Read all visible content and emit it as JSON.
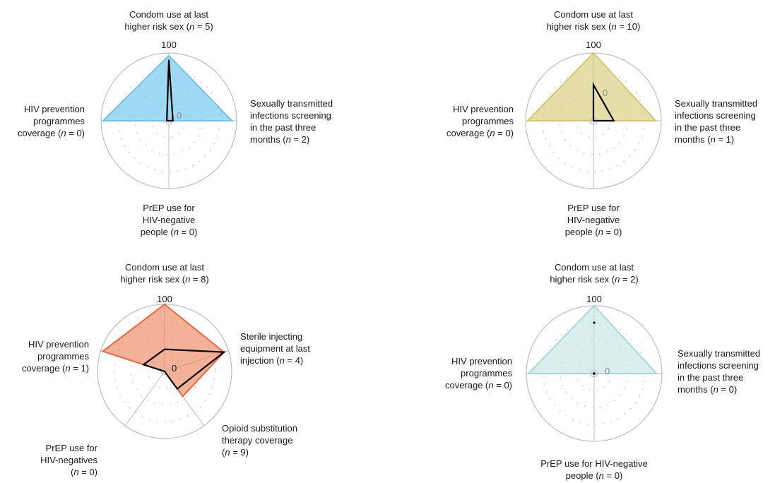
{
  "chart_data": [
    {
      "type": "radar",
      "id": "tl",
      "max_label": "100",
      "zero_label": "0",
      "range": [
        0,
        100
      ],
      "colors": {
        "fill": "#6cc5ec",
        "stroke": "#6cc5ec",
        "line": "#000000"
      },
      "axes": [
        {
          "lines": [
            "Condom use at last",
            "higher risk sex (n = 5)"
          ]
        },
        {
          "lines": [
            "Sexually transmitted",
            "infections screening",
            "in the past three",
            "months (n = 2)"
          ]
        },
        {
          "lines": [
            "PrEP use for",
            "HIV-negative",
            "people (n = 0)"
          ]
        },
        {
          "lines": [
            "HIV prevention",
            "programmes",
            "coverage (n = 0)"
          ]
        }
      ],
      "series": [
        {
          "values": [
            96,
            93,
            0,
            97
          ]
        },
        {
          "values": [
            90,
            6,
            0,
            3
          ]
        }
      ]
    },
    {
      "type": "radar",
      "id": "tr",
      "max_label": "100",
      "zero_label": "0",
      "range": [
        0,
        100
      ],
      "colors": {
        "fill": "#d9cd7a",
        "stroke": "#d4c76c",
        "line": "#000000"
      },
      "axes": [
        {
          "lines": [
            "Condom use at last",
            "higher risk sex (n = 10)"
          ]
        },
        {
          "lines": [
            "Sexually transmitted",
            "infections screening",
            "in the past three",
            "months (n = 1)"
          ]
        },
        {
          "lines": [
            "PrEP use for",
            "HIV-negative",
            "people (n = 0)"
          ]
        },
        {
          "lines": [
            "HIV prevention",
            "programmes",
            "coverage (n = 0)"
          ]
        }
      ],
      "series": [
        {
          "values": [
            100,
            92,
            0,
            97
          ]
        },
        {
          "values": [
            53,
            30,
            0,
            0
          ]
        }
      ]
    },
    {
      "type": "radar",
      "id": "bl",
      "max_label": "100",
      "zero_label": "0",
      "range": [
        0,
        100
      ],
      "colors": {
        "fill": "#ec8762",
        "stroke": "#e9683c",
        "line": "#000000"
      },
      "axes": [
        {
          "lines": [
            "Condom use at last",
            "higher risk sex (n = 8)"
          ]
        },
        {
          "lines": [
            "Sterile injecting",
            "equipment at last",
            "injection (n = 4)"
          ]
        },
        {
          "lines": [
            "Opioid substitution",
            "therapy coverage",
            "(n = 9)"
          ]
        },
        {
          "lines": [
            "PrEP use for",
            "HIV-negatives",
            "(n = 0)"
          ]
        },
        {
          "lines": [
            "HIV prevention",
            "programmes",
            "coverage (n = 1)"
          ]
        }
      ],
      "series": [
        {
          "values": [
            100,
            93,
            46,
            0,
            97
          ]
        },
        {
          "values": [
            33,
            93,
            32,
            0,
            33
          ]
        }
      ]
    },
    {
      "type": "radar",
      "id": "br",
      "max_label": "100",
      "zero_label": "0",
      "range": [
        0,
        100
      ],
      "colors": {
        "fill": "#c2e3e2",
        "stroke": "#a9d8d6",
        "line": "#000000"
      },
      "axes": [
        {
          "lines": [
            "Condom use at last",
            "higher risk sex (n = 2)"
          ]
        },
        {
          "lines": [
            "Sexually transmitted",
            "infections screening",
            "in the past three",
            "months (n = 0)"
          ]
        },
        {
          "lines": [
            "PrEP use for HIV-negative",
            "people (n = 0)"
          ]
        },
        {
          "lines": [
            "HIV prevention",
            "programmes",
            "coverage (n = 0)"
          ]
        }
      ],
      "series": [
        {
          "values": [
            100,
            92,
            0,
            97
          ]
        },
        {
          "values": [
            75,
            0,
            0,
            0
          ]
        }
      ]
    }
  ]
}
